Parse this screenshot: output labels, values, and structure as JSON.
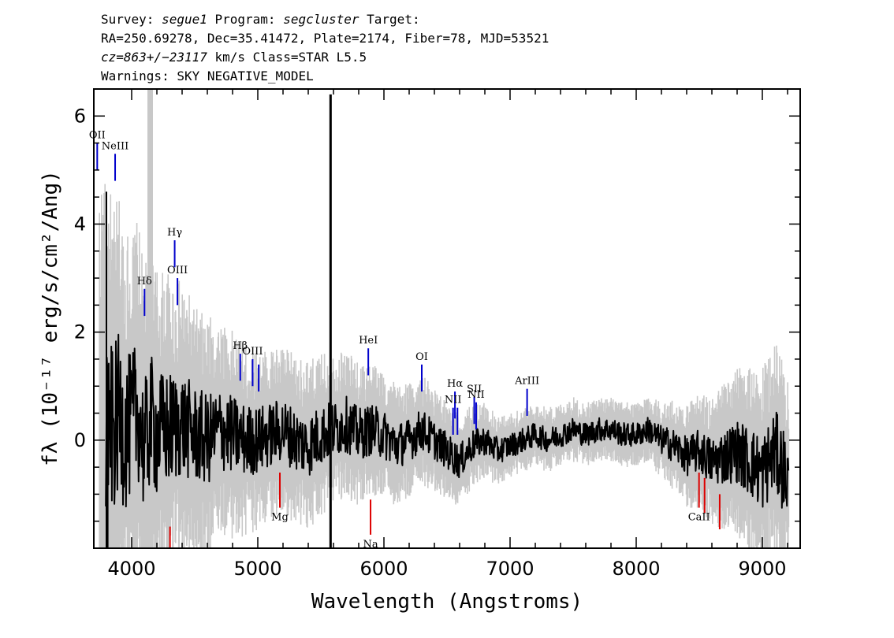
{
  "header": {
    "line1": {
      "p1": "Survey: ",
      "survey": "segue1",
      "p2": " Program: ",
      "program": "segcluster",
      "p3": " Target:"
    },
    "line2": "RA=250.69278, Dec=35.41472, Plate=2174, Fiber=78, MJD=53521",
    "line3": {
      "cz": "cz=863+/−23117",
      "rest": " km/s Class=STAR L5.5"
    },
    "line4": "Warnings: SKY NEGATIVE_MODEL"
  },
  "chart_data": {
    "type": "line",
    "xlabel": "Wavelength (Angstroms)",
    "ylabel": "fλ (10⁻¹⁷ erg/s/cm²/Ang)",
    "xlim": [
      3700,
      9300
    ],
    "ylim": [
      -2.0,
      6.5
    ],
    "x_ticks": [
      4000,
      5000,
      6000,
      7000,
      8000,
      9000
    ],
    "y_ticks": [
      0,
      2,
      4,
      6
    ],
    "grid": false,
    "colors": {
      "flux": "#000000",
      "error": "#c8c8c8",
      "emission": "#0000cc",
      "absorption": "#dd0000"
    },
    "series": [
      {
        "name": "",
        "role": "smoothed flux",
        "x": [
          3780,
          3820,
          3850,
          3900,
          3950,
          4000,
          4050,
          4100,
          4150,
          4200,
          4300,
          4400,
          4500,
          4600,
          4700,
          4800,
          4900,
          5000,
          5100,
          5200,
          5300,
          5400,
          5500,
          5600,
          5700,
          5800,
          5900,
          6000,
          6100,
          6200,
          6300,
          6400,
          6500,
          6550,
          6600,
          6700,
          6800,
          6900,
          7000,
          7100,
          7200,
          7300,
          7400,
          7500,
          7600,
          7700,
          7800,
          7900,
          8000,
          8100,
          8200,
          8300,
          8400,
          8500,
          8600,
          8700,
          8800,
          8900,
          9000,
          9100,
          9200
        ],
        "y": [
          0.2,
          0.4,
          0.1,
          0.5,
          0.1,
          0.3,
          0.6,
          -0.2,
          0.4,
          0.1,
          0.2,
          0.3,
          0.1,
          0.0,
          0.2,
          0.1,
          0.0,
          0.0,
          0.1,
          0.2,
          0.0,
          -0.1,
          0.1,
          0.2,
          0.3,
          0.1,
          0.2,
          0.1,
          -0.1,
          0.0,
          0.2,
          0.0,
          -0.2,
          -0.3,
          -0.4,
          -0.1,
          0.0,
          -0.2,
          -0.1,
          0.0,
          0.1,
          0.0,
          0.1,
          0.2,
          0.1,
          0.2,
          0.2,
          0.1,
          0.1,
          0.2,
          0.0,
          -0.1,
          -0.3,
          -0.2,
          -0.4,
          -0.3,
          -0.2,
          -0.4,
          -0.6,
          -0.2,
          -0.7
        ]
      },
      {
        "name": "",
        "role": "error envelope",
        "x": [
          3750,
          3850,
          4000,
          4100,
          4200,
          4300,
          4400,
          4500,
          4600,
          4800,
          5000,
          5200,
          5400,
          5600,
          5800,
          6000,
          6200,
          6400,
          6600,
          6800,
          7000,
          7200,
          7400,
          7600,
          7800,
          8000,
          8200,
          8400,
          8600,
          8800,
          9000,
          9200
        ],
        "y": [
          4.0,
          3.5,
          3.0,
          2.8,
          2.6,
          2.4,
          2.2,
          2.0,
          1.9,
          1.6,
          1.4,
          1.3,
          1.3,
          1.2,
          1.1,
          1.0,
          0.9,
          0.8,
          0.7,
          0.6,
          0.5,
          0.5,
          0.5,
          0.5,
          0.5,
          0.5,
          0.6,
          0.8,
          1.0,
          1.3,
          1.6,
          1.8
        ]
      }
    ],
    "features": {
      "cosmic_ray": {
        "x": 5577,
        "y_top": 6.4
      },
      "emission_lines": [
        {
          "label": "OII",
          "x": 3727,
          "y": 5.5
        },
        {
          "label": "NeIII",
          "x": 3869,
          "y": 5.3
        },
        {
          "label": "Hδ",
          "x": 4102,
          "y": 2.8
        },
        {
          "label": "Hγ",
          "x": 4341,
          "y": 3.7
        },
        {
          "label": "OIII",
          "x": 4363,
          "y": 3.0
        },
        {
          "label": "Hβ",
          "x": 4861,
          "y": 1.6
        },
        {
          "label": "OIII",
          "x": 4959,
          "y": 1.5
        },
        {
          "label": "",
          "x": 5007,
          "y": 1.4
        },
        {
          "label": "HeI",
          "x": 5876,
          "y": 1.7
        },
        {
          "label": "OI",
          "x": 6300,
          "y": 1.4
        },
        {
          "label": "NII",
          "x": 6548,
          "y": 0.6
        },
        {
          "label": "Hα",
          "x": 6563,
          "y": 0.9
        },
        {
          "label": "",
          "x": 6583,
          "y": 0.6
        },
        {
          "label": "SII",
          "x": 6716,
          "y": 0.8
        },
        {
          "label": "NII",
          "x": 6731,
          "y": 0.7
        },
        {
          "label": "ArIII",
          "x": 7135,
          "y": 0.95
        }
      ],
      "absorption_lines": [
        {
          "label": "",
          "x": 4304,
          "y": -1.6
        },
        {
          "label": "Mg",
          "x": 5175,
          "y": -0.6
        },
        {
          "label": "Na",
          "x": 5894,
          "y": -1.1
        },
        {
          "label": "CaII",
          "x": 8498,
          "y": -0.6
        },
        {
          "label": "",
          "x": 8542,
          "y": -0.7
        },
        {
          "label": "",
          "x": 8662,
          "y": -1.0
        }
      ]
    }
  }
}
